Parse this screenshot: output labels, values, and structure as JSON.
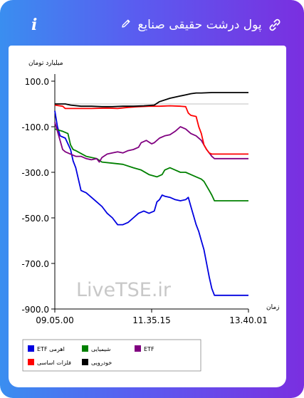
{
  "header": {
    "title": "پول درشت حقیقی صنایع",
    "info_label": "i"
  },
  "watermark": "LiveTSE.ir",
  "chart_data": {
    "type": "line",
    "ylabel": "میلیارد تومان",
    "xlabel": "زمان",
    "ylim": [
      -900,
      100
    ],
    "yticks": [
      "100.0",
      "-100.0",
      "-300.0",
      "-500.0",
      "-700.0",
      "-900.0"
    ],
    "xticks": [
      "09.05.00",
      "11.35.15",
      "13.40.01"
    ],
    "grid": false,
    "legend_position": "bottom",
    "series": [
      {
        "name": "ETF اهرمی",
        "color": "#0000e0",
        "points": [
          [
            0,
            -30
          ],
          [
            1,
            -100
          ],
          [
            2,
            -140
          ],
          [
            4,
            -150
          ],
          [
            6,
            -200
          ],
          [
            7,
            -250
          ],
          [
            8,
            -280
          ],
          [
            9,
            -330
          ],
          [
            10,
            -380
          ],
          [
            12,
            -390
          ],
          [
            14,
            -410
          ],
          [
            16,
            -430
          ],
          [
            18,
            -450
          ],
          [
            20,
            -480
          ],
          [
            22,
            -500
          ],
          [
            24,
            -530
          ],
          [
            26,
            -530
          ],
          [
            28,
            -520
          ],
          [
            30,
            -500
          ],
          [
            32,
            -480
          ],
          [
            34,
            -470
          ],
          [
            36,
            -480
          ],
          [
            38,
            -470
          ],
          [
            39,
            -430
          ],
          [
            40,
            -420
          ],
          [
            41,
            -400
          ],
          [
            42,
            -405
          ],
          [
            44,
            -410
          ],
          [
            46,
            -420
          ],
          [
            48,
            -425
          ],
          [
            50,
            -420
          ],
          [
            51,
            -410
          ],
          [
            52,
            -450
          ],
          [
            53,
            -490
          ],
          [
            54,
            -530
          ],
          [
            55,
            -560
          ],
          [
            56,
            -600
          ],
          [
            57,
            -640
          ],
          [
            58,
            -700
          ],
          [
            59,
            -760
          ],
          [
            60,
            -810
          ],
          [
            61,
            -840
          ],
          [
            65,
            -840
          ],
          [
            74,
            -840
          ]
        ]
      },
      {
        "name": "شیمیایی",
        "color": "#008000",
        "points": [
          [
            0,
            -110
          ],
          [
            3,
            -120
          ],
          [
            5,
            -130
          ],
          [
            6,
            -180
          ],
          [
            7,
            -200
          ],
          [
            8,
            -205
          ],
          [
            12,
            -230
          ],
          [
            16,
            -240
          ],
          [
            18,
            -255
          ],
          [
            22,
            -260
          ],
          [
            26,
            -265
          ],
          [
            30,
            -280
          ],
          [
            33,
            -290
          ],
          [
            36,
            -310
          ],
          [
            39,
            -320
          ],
          [
            41,
            -310
          ],
          [
            42,
            -290
          ],
          [
            44,
            -280
          ],
          [
            46,
            -290
          ],
          [
            48,
            -300
          ],
          [
            50,
            -300
          ],
          [
            52,
            -310
          ],
          [
            54,
            -320
          ],
          [
            56,
            -330
          ],
          [
            57,
            -340
          ],
          [
            58,
            -360
          ],
          [
            59,
            -380
          ],
          [
            60,
            -400
          ],
          [
            61,
            -425
          ],
          [
            65,
            -425
          ],
          [
            74,
            -425
          ]
        ]
      },
      {
        "name": "ETF",
        "color": "#800080",
        "points": [
          [
            0,
            -80
          ],
          [
            1,
            -120
          ],
          [
            2,
            -160
          ],
          [
            3,
            -200
          ],
          [
            4,
            -210
          ],
          [
            6,
            -220
          ],
          [
            8,
            -230
          ],
          [
            10,
            -230
          ],
          [
            12,
            -240
          ],
          [
            14,
            -245
          ],
          [
            16,
            -240
          ],
          [
            17,
            -255
          ],
          [
            18,
            -235
          ],
          [
            20,
            -220
          ],
          [
            22,
            -215
          ],
          [
            24,
            -210
          ],
          [
            26,
            -215
          ],
          [
            28,
            -205
          ],
          [
            30,
            -200
          ],
          [
            32,
            -190
          ],
          [
            33,
            -170
          ],
          [
            35,
            -160
          ],
          [
            37,
            -175
          ],
          [
            38,
            -170
          ],
          [
            40,
            -150
          ],
          [
            42,
            -140
          ],
          [
            44,
            -135
          ],
          [
            46,
            -120
          ],
          [
            48,
            -100
          ],
          [
            50,
            -110
          ],
          [
            52,
            -130
          ],
          [
            54,
            -140
          ],
          [
            56,
            -160
          ],
          [
            58,
            -200
          ],
          [
            60,
            -230
          ],
          [
            61,
            -240
          ],
          [
            74,
            -240
          ]
        ]
      },
      {
        "name": "فلزات اساسی",
        "color": "#ff0000",
        "points": [
          [
            0,
            -5
          ],
          [
            3,
            -10
          ],
          [
            4,
            -20
          ],
          [
            10,
            -20
          ],
          [
            14,
            -20
          ],
          [
            20,
            -18
          ],
          [
            24,
            -20
          ],
          [
            28,
            -15
          ],
          [
            32,
            -12
          ],
          [
            36,
            -10
          ],
          [
            40,
            -10
          ],
          [
            44,
            -8
          ],
          [
            48,
            -10
          ],
          [
            50,
            -12
          ],
          [
            51,
            -40
          ],
          [
            52,
            -50
          ],
          [
            54,
            -55
          ],
          [
            55,
            -100
          ],
          [
            56,
            -130
          ],
          [
            57,
            -180
          ],
          [
            58,
            -200
          ],
          [
            59,
            -215
          ],
          [
            60,
            -220
          ],
          [
            74,
            -220
          ]
        ]
      },
      {
        "name": "خودرویی",
        "color": "#000000",
        "points": [
          [
            0,
            0
          ],
          [
            4,
            0
          ],
          [
            6,
            -5
          ],
          [
            10,
            -10
          ],
          [
            14,
            -10
          ],
          [
            18,
            -12
          ],
          [
            22,
            -12
          ],
          [
            26,
            -10
          ],
          [
            30,
            -10
          ],
          [
            34,
            -8
          ],
          [
            38,
            -5
          ],
          [
            40,
            10
          ],
          [
            44,
            25
          ],
          [
            46,
            30
          ],
          [
            48,
            35
          ],
          [
            50,
            40
          ],
          [
            52,
            45
          ],
          [
            54,
            48
          ],
          [
            56,
            48
          ],
          [
            60,
            50
          ],
          [
            65,
            50
          ],
          [
            74,
            50
          ]
        ]
      }
    ]
  }
}
